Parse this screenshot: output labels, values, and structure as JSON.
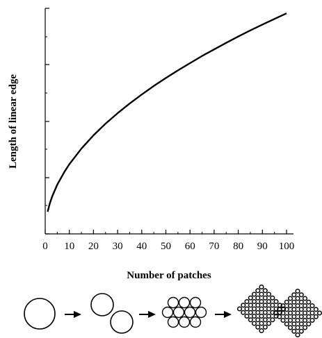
{
  "chart_data": {
    "type": "line",
    "title": "",
    "xlabel": "Number of patches",
    "ylabel": "Length of linear edge",
    "xlim": [
      0,
      100
    ],
    "ylim": [
      0,
      1
    ],
    "x_ticks": [
      "0",
      "10",
      "20",
      "30",
      "40",
      "50",
      "60",
      "70",
      "80",
      "90",
      "100"
    ],
    "y_tick_labels_shown": false,
    "grid": false,
    "legend": "none",
    "series": [
      {
        "x": [
          1,
          2,
          3,
          5,
          8,
          10,
          15,
          20,
          25,
          30,
          35,
          40,
          45,
          50,
          55,
          60,
          65,
          70,
          75,
          80,
          85,
          90,
          95,
          100
        ],
        "y": [
          0.098,
          0.138,
          0.169,
          0.218,
          0.276,
          0.309,
          0.378,
          0.437,
          0.489,
          0.535,
          0.578,
          0.618,
          0.656,
          0.691,
          0.725,
          0.757,
          0.789,
          0.818,
          0.847,
          0.875,
          0.902,
          0.928,
          0.953,
          0.978
        ]
      }
    ]
  },
  "progression": {
    "stages": [
      "1 patch",
      "2 patches",
      "10 patches",
      "100 patches"
    ],
    "arrow_icon": "right-arrow-icon",
    "color": "#000000"
  }
}
